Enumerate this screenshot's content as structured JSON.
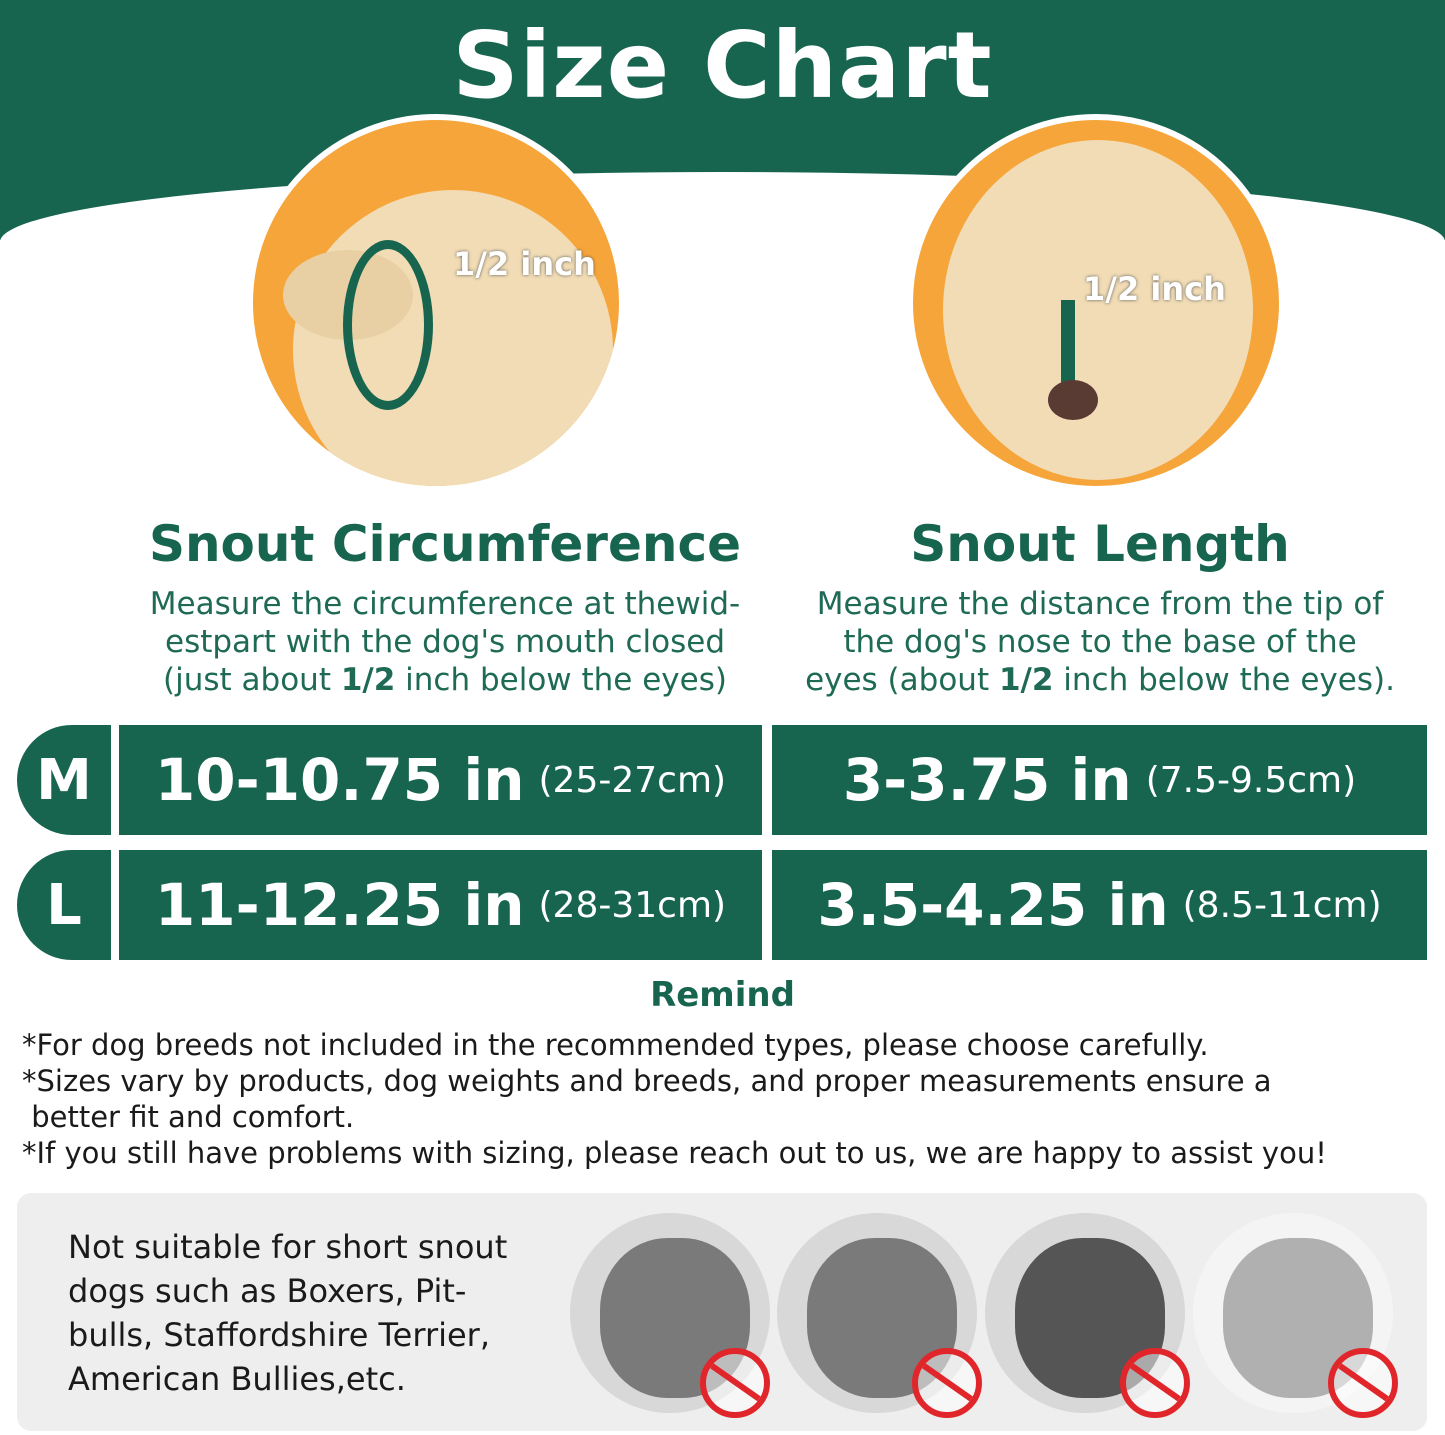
{
  "header": {
    "title": "Size Chart"
  },
  "colors": {
    "primary": "#17654f",
    "accent": "#f6a53a",
    "warning": "#e0262a",
    "panel": "#eeeeee"
  },
  "left": {
    "measure_label": "1/2 inch",
    "heading": "Snout Circumference",
    "desc_lines": [
      "Measure the circumference at thewid-",
      "estpart with the dog's mouth closed"
    ],
    "desc_last_pre": "(just about ",
    "desc_last_bold": "1/2",
    "desc_last_post": " inch below the eyes)"
  },
  "right": {
    "measure_label": "1/2 inch",
    "heading": "Snout Length",
    "desc_lines": [
      "Measure the distance from the tip of",
      "the dog's nose to the base of the"
    ],
    "desc_last_pre": "eyes (about ",
    "desc_last_bold": "1/2",
    "desc_last_post": " inch below the eyes)."
  },
  "table": {
    "rows": [
      {
        "size": "M",
        "circ_in": "10-10.75 in",
        "circ_cm": "(25-27cm)",
        "len_in": "3-3.75 in",
        "len_cm": "(7.5-9.5cm)"
      },
      {
        "size": "L",
        "circ_in": "11-12.25 in",
        "circ_cm": "(28-31cm)",
        "len_in": "3.5-4.25 in",
        "len_cm": "(8.5-11cm)"
      }
    ]
  },
  "remind": {
    "title": "Remind",
    "notes": [
      "*For dog breeds not included in the recommended types, please choose carefully.",
      "*Sizes vary by products, dog weights and breeds, and proper measurements ensure a",
      " better fit and comfort.",
      "*If you still have problems with sizing, please reach out to us, we are happy to assist you!"
    ]
  },
  "warning": {
    "lines": [
      "Not suitable for short snout",
      "dogs such as Boxers, Pit-",
      "bulls, Staffordshire Terrier,",
      "American Bullies,etc."
    ],
    "icons": [
      "no-sign-icon",
      "no-sign-icon",
      "no-sign-icon",
      "no-sign-icon"
    ]
  }
}
